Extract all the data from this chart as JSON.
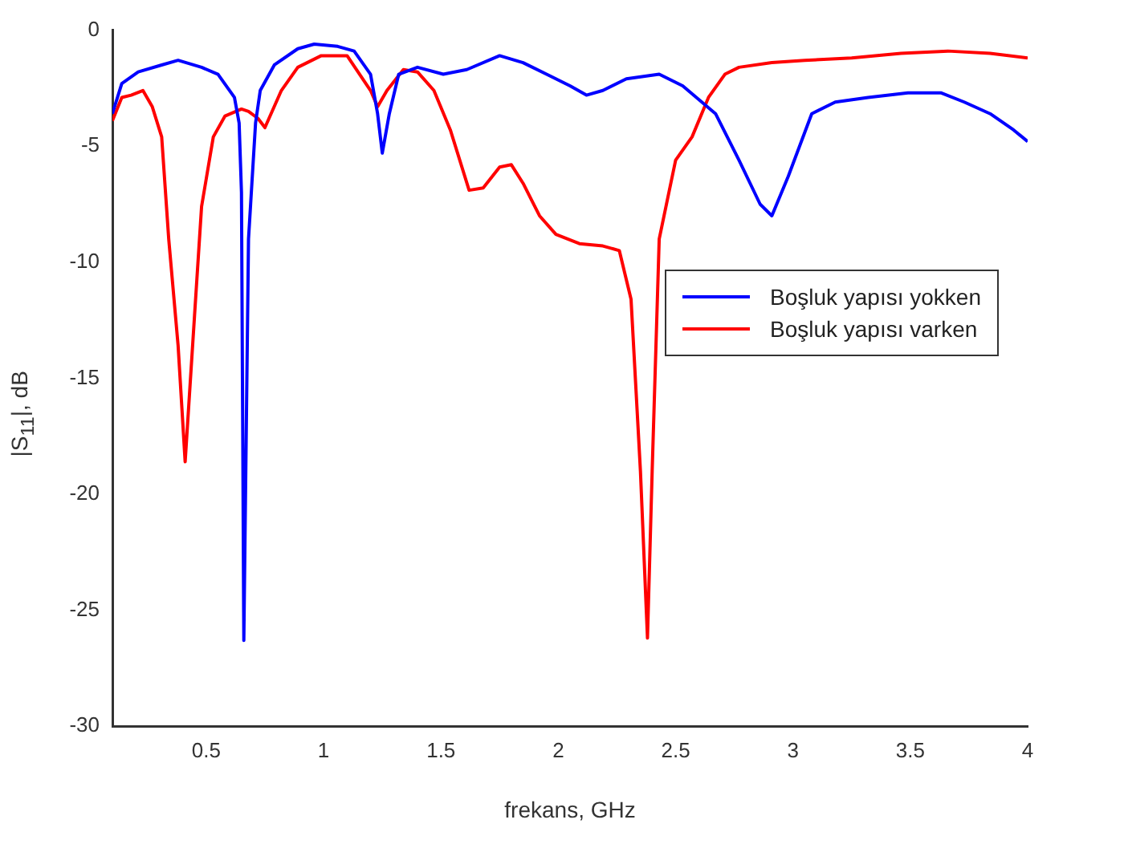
{
  "chart_data": {
    "type": "line",
    "xlabel": "frekans, GHz",
    "ylabel": "|S$_{11}$|, dB",
    "xlim": [
      0.1,
      4
    ],
    "ylim": [
      -30,
      0
    ],
    "xticks": [
      0.5,
      1,
      1.5,
      2,
      2.5,
      3,
      3.5,
      4
    ],
    "yticks": [
      -30,
      -25,
      -20,
      -15,
      -10,
      -5,
      0
    ],
    "grid": false,
    "legend": "right",
    "marker": "none",
    "line_style": "solid",
    "series": [
      {
        "name": "Boşluk yapısı yokken",
        "color": "#0000ff",
        "x": [
          0.1,
          0.14,
          0.21,
          0.31,
          0.38,
          0.48,
          0.55,
          0.62,
          0.64,
          0.65,
          0.66,
          0.68,
          0.71,
          0.73,
          0.79,
          0.89,
          0.96,
          1.06,
          1.13,
          1.2,
          1.23,
          1.25,
          1.28,
          1.32,
          1.4,
          1.51,
          1.61,
          1.75,
          1.85,
          1.95,
          2.05,
          2.12,
          2.19,
          2.29,
          2.43,
          2.53,
          2.67,
          2.77,
          2.86,
          2.91,
          2.98,
          3.08,
          3.18,
          3.32,
          3.49,
          3.63,
          3.73,
          3.84,
          3.94,
          4.0
        ],
        "values": [
          -3.6,
          -2.3,
          -1.8,
          -1.5,
          -1.3,
          -1.6,
          -1.9,
          -2.9,
          -4.0,
          -7.0,
          -26.3,
          -9.0,
          -4.0,
          -2.6,
          -1.5,
          -0.8,
          -0.6,
          -0.7,
          -0.9,
          -1.9,
          -3.6,
          -5.3,
          -3.6,
          -1.9,
          -1.6,
          -1.9,
          -1.7,
          -1.1,
          -1.4,
          -1.9,
          -2.4,
          -2.8,
          -2.6,
          -2.1,
          -1.9,
          -2.4,
          -3.6,
          -5.6,
          -7.5,
          -8.0,
          -6.3,
          -3.6,
          -3.1,
          -2.9,
          -2.7,
          -2.7,
          -3.1,
          -3.6,
          -4.3,
          -4.8
        ]
      },
      {
        "name": "Boşluk yapısı varken",
        "color": "#ff0000",
        "x": [
          0.1,
          0.14,
          0.18,
          0.23,
          0.27,
          0.31,
          0.34,
          0.38,
          0.41,
          0.45,
          0.48,
          0.53,
          0.58,
          0.65,
          0.68,
          0.72,
          0.75,
          0.82,
          0.89,
          0.99,
          1.1,
          1.2,
          1.23,
          1.27,
          1.34,
          1.4,
          1.47,
          1.54,
          1.62,
          1.68,
          1.75,
          1.8,
          1.85,
          1.92,
          1.99,
          2.09,
          2.19,
          2.26,
          2.31,
          2.35,
          2.38,
          2.4,
          2.43,
          2.5,
          2.57,
          2.64,
          2.71,
          2.77,
          2.91,
          3.05,
          3.25,
          3.46,
          3.66,
          3.84,
          4.0
        ],
        "values": [
          -3.9,
          -2.9,
          -2.8,
          -2.6,
          -3.3,
          -4.6,
          -9.0,
          -13.6,
          -18.6,
          -12.3,
          -7.6,
          -4.6,
          -3.7,
          -3.4,
          -3.5,
          -3.8,
          -4.2,
          -2.6,
          -1.6,
          -1.1,
          -1.1,
          -2.6,
          -3.3,
          -2.6,
          -1.7,
          -1.8,
          -2.6,
          -4.3,
          -6.9,
          -6.8,
          -5.9,
          -5.8,
          -6.6,
          -8.0,
          -8.8,
          -9.2,
          -9.3,
          -9.5,
          -11.6,
          -19.0,
          -26.2,
          -19.0,
          -9.0,
          -5.6,
          -4.6,
          -2.9,
          -1.9,
          -1.6,
          -1.4,
          -1.3,
          -1.2,
          -1.0,
          -0.9,
          -1.0,
          -1.2
        ]
      }
    ]
  }
}
